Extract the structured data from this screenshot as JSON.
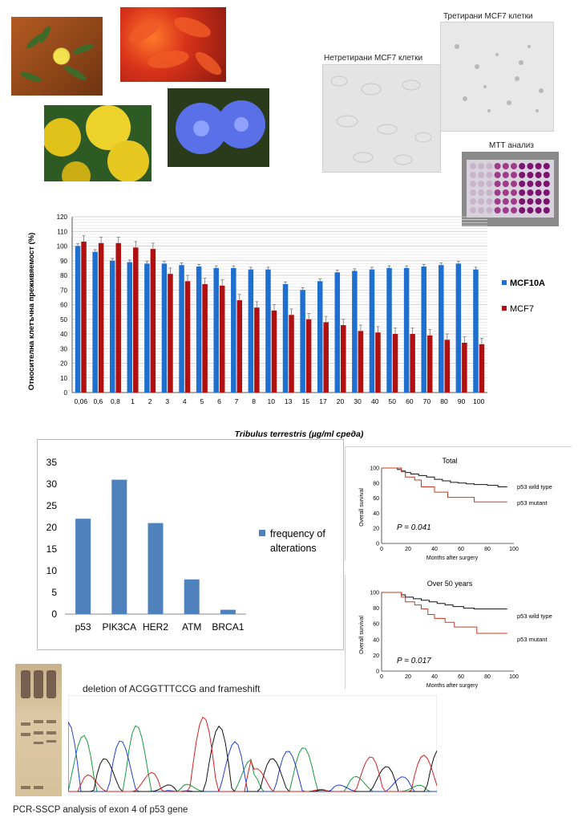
{
  "captions": {
    "untreated": "Нетретирани МСF7 клетки",
    "treated": "Третирани МСF7 клетки",
    "mtt": "МТТ анализ",
    "deletion": "deletion of ACGGTTTCCG  and frameshift",
    "sscp": "PCR-SSCP analysis of exon 4 of p53 gene"
  },
  "colors": {
    "mcf10a": "#1f6fd1",
    "mcf7": "#b01010",
    "freq": "#4f81bd"
  },
  "chart_data": [
    {
      "type": "bar",
      "title": "",
      "xlabel": "Tribulus terrestris (µg/ml среда)",
      "ylabel": "Относителна клетъчна преживяемост (%)",
      "ylim": [
        0,
        120
      ],
      "yticks": [
        0,
        10,
        20,
        30,
        40,
        50,
        60,
        70,
        80,
        90,
        100,
        110,
        120
      ],
      "grid": true,
      "legend": "right",
      "categories": [
        "0,06",
        "0,6",
        "0,8",
        "1",
        "2",
        "3",
        "4",
        "5",
        "6",
        "7",
        "8",
        "10",
        "13",
        "15",
        "17",
        "20",
        "30",
        "40",
        "50",
        "60",
        "70",
        "80",
        "90",
        "100"
      ],
      "series": [
        {
          "name": "MCF10A",
          "values": [
            100,
            96,
            90,
            89,
            88,
            88,
            87,
            86,
            85,
            85,
            84,
            84,
            74,
            70,
            76,
            82,
            83,
            84,
            85,
            85,
            86,
            87,
            88,
            84
          ]
        },
        {
          "name": "MCF7",
          "values": [
            103,
            102,
            102,
            99,
            98,
            81,
            76,
            74,
            73,
            63,
            58,
            56,
            53,
            50,
            48,
            46,
            42,
            41,
            40,
            40,
            39,
            36,
            34,
            33
          ]
        }
      ]
    },
    {
      "type": "bar",
      "title": "",
      "ylim": [
        0,
        35
      ],
      "yticks": [
        0,
        5,
        10,
        15,
        20,
        25,
        30,
        35
      ],
      "legend": "right",
      "categories": [
        "p53",
        "PIK3CA",
        "HER2",
        "ATM",
        "BRCA1"
      ],
      "series": [
        {
          "name": "frequency of alterations",
          "values": [
            22,
            31,
            21,
            8,
            1
          ]
        }
      ]
    },
    {
      "type": "line",
      "title": "Total",
      "xlabel": "Months after surgery",
      "ylabel": "Overall survival",
      "xlim": [
        0,
        100
      ],
      "ylim": [
        0,
        100
      ],
      "xticks": [
        0,
        20,
        40,
        60,
        80,
        100
      ],
      "yticks": [
        0,
        20,
        40,
        60,
        80,
        100
      ],
      "annotation": "P = 0.041",
      "series": [
        {
          "name": "p53 wild type",
          "x": [
            0,
            10,
            12,
            15,
            18,
            22,
            28,
            34,
            40,
            46,
            52,
            58,
            64,
            70,
            80,
            88,
            95
          ],
          "y": [
            100,
            100,
            98,
            96,
            94,
            92,
            90,
            88,
            85,
            83,
            81,
            80,
            79,
            78,
            77,
            75,
            75
          ]
        },
        {
          "name": "p53 mutant",
          "x": [
            0,
            12,
            15,
            18,
            25,
            30,
            40,
            50,
            70,
            95
          ],
          "y": [
            100,
            100,
            95,
            88,
            84,
            75,
            68,
            61,
            55,
            55
          ]
        }
      ]
    },
    {
      "type": "line",
      "title": "Over 50 years",
      "xlabel": "Months after surgery",
      "ylabel": "Overall survival",
      "xlim": [
        0,
        100
      ],
      "ylim": [
        0,
        100
      ],
      "xticks": [
        0,
        20,
        40,
        60,
        80,
        100
      ],
      "yticks": [
        0,
        20,
        40,
        60,
        80,
        100
      ],
      "annotation": "P = 0.017",
      "series": [
        {
          "name": "p53 wild type",
          "x": [
            0,
            12,
            15,
            18,
            24,
            30,
            36,
            42,
            48,
            54,
            62,
            70,
            80,
            95
          ],
          "y": [
            100,
            100,
            97,
            94,
            92,
            90,
            88,
            86,
            84,
            82,
            80,
            79,
            79,
            79
          ]
        },
        {
          "name": "p53 mutant",
          "x": [
            0,
            12,
            15,
            18,
            25,
            30,
            35,
            40,
            48,
            55,
            72,
            95
          ],
          "y": [
            100,
            100,
            94,
            88,
            84,
            79,
            72,
            67,
            62,
            56,
            48,
            48
          ]
        }
      ]
    }
  ]
}
